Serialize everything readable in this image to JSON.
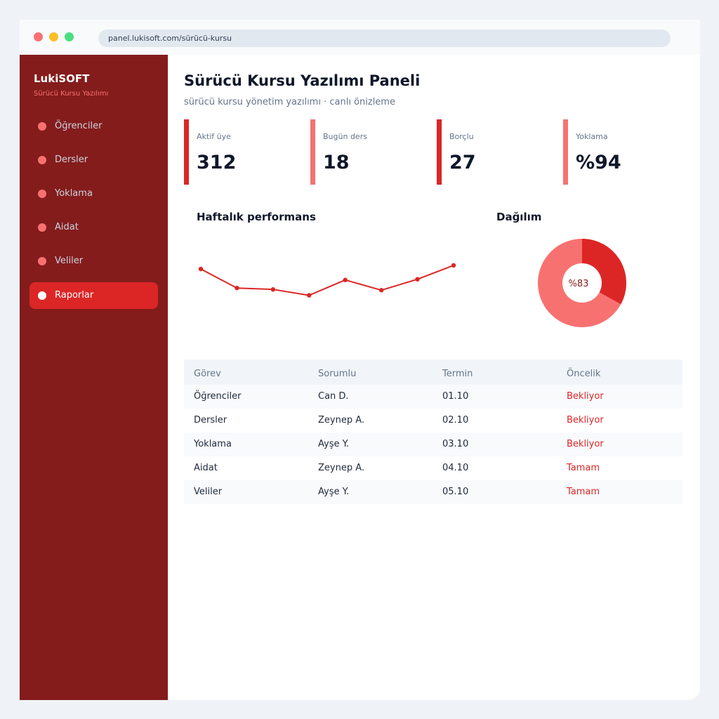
{
  "browser": {
    "url": "panel.lukisoft.com/sürücü-kursu"
  },
  "sidebar": {
    "brand": "LukiSOFT",
    "brand_subtitle": "Sürücü Kursu Yazılımı",
    "items": [
      {
        "label": "Öğrenciler",
        "active": false
      },
      {
        "label": "Dersler",
        "active": false
      },
      {
        "label": "Yoklama",
        "active": false
      },
      {
        "label": "Aidat",
        "active": false
      },
      {
        "label": "Veliler",
        "active": false
      },
      {
        "label": "Raporlar",
        "active": true
      }
    ]
  },
  "header": {
    "title": "Sürücü Kursu Yazılımı Paneli",
    "subtitle": "sürücü kursu yönetim yazılımı · canlı önizleme"
  },
  "stats": [
    {
      "label": "Aktif üye",
      "value": "312",
      "accent": "#dc2626"
    },
    {
      "label": "Bugün ders",
      "value": "18",
      "accent": "#f87171"
    },
    {
      "label": "Borçlu",
      "value": "27",
      "accent": "#dc2626"
    },
    {
      "label": "Yoklama",
      "value": "%94",
      "accent": "#f87171"
    }
  ],
  "line_panel": {
    "title": "Haftalık performans"
  },
  "donut_panel": {
    "title": "Dağılım",
    "center_label": "%83"
  },
  "chart_data": [
    {
      "type": "line",
      "title": "Haftalık performans",
      "x": [
        1,
        2,
        3,
        4,
        5,
        6,
        7,
        8
      ],
      "values": [
        72,
        46,
        44,
        36,
        57,
        43,
        58,
        77
      ],
      "ylim": [
        0,
        100
      ],
      "color": "#dc2626",
      "grid": false
    },
    {
      "type": "pie",
      "title": "Dağılım",
      "values": [
        33,
        67
      ],
      "colors": [
        "#dc2626",
        "#f87171"
      ],
      "donut": true,
      "center_label": "%83"
    }
  ],
  "table": {
    "columns": [
      "Görev",
      "Sorumlu",
      "Termin",
      "Öncelik"
    ],
    "rows": [
      [
        "Öğrenciler",
        "Can D.",
        "01.10",
        "Bekliyor"
      ],
      [
        "Dersler",
        "Zeynep A.",
        "02.10",
        "Bekliyor"
      ],
      [
        "Yoklama",
        "Ayşe Y.",
        "03.10",
        "Bekliyor"
      ],
      [
        "Aidat",
        "Zeynep A.",
        "04.10",
        "Tamam"
      ],
      [
        "Veliler",
        "Ayşe Y.",
        "05.10",
        "Tamam"
      ]
    ]
  },
  "colors": {
    "sidebar_bg": "#841c1c",
    "accent": "#dc2626",
    "accent_light": "#f87171",
    "status_text": "#dc2626"
  }
}
